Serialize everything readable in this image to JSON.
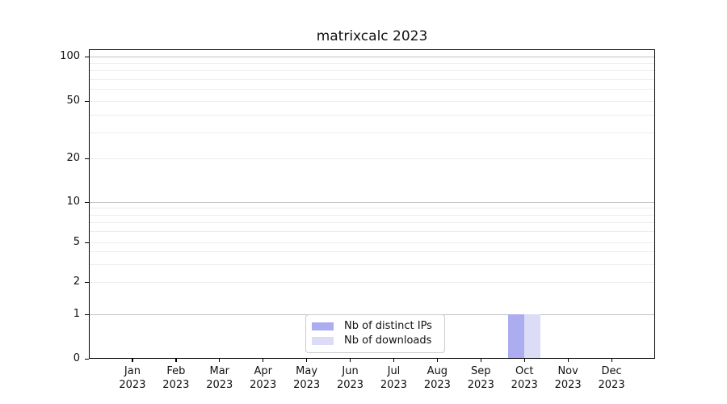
{
  "chart_data": {
    "type": "bar",
    "title": "matrixcalc 2023",
    "xlabel": "",
    "ylabel": "",
    "yscale": "symlog",
    "ylim": [
      0,
      100
    ],
    "yticks": [
      0,
      1,
      2,
      5,
      10,
      20,
      50,
      100
    ],
    "gridlines": {
      "major": [
        1,
        10,
        100
      ],
      "minor": [
        2,
        3,
        4,
        5,
        6,
        7,
        8,
        9,
        20,
        30,
        40,
        50,
        60,
        70,
        80,
        90
      ]
    },
    "grid": "horizontal-only",
    "categories": [
      {
        "month": "Jan",
        "year": "2023"
      },
      {
        "month": "Feb",
        "year": "2023"
      },
      {
        "month": "Mar",
        "year": "2023"
      },
      {
        "month": "Apr",
        "year": "2023"
      },
      {
        "month": "May",
        "year": "2023"
      },
      {
        "month": "Jun",
        "year": "2023"
      },
      {
        "month": "Jul",
        "year": "2023"
      },
      {
        "month": "Aug",
        "year": "2023"
      },
      {
        "month": "Sep",
        "year": "2023"
      },
      {
        "month": "Oct",
        "year": "2023"
      },
      {
        "month": "Nov",
        "year": "2023"
      },
      {
        "month": "Dec",
        "year": "2023"
      }
    ],
    "series": [
      {
        "name": "Nb of distinct IPs",
        "color": "#acacf1",
        "values": [
          0,
          0,
          0,
          0,
          0,
          0,
          0,
          0,
          0,
          1,
          0,
          0
        ]
      },
      {
        "name": "Nb of downloads",
        "color": "#dcdcf7",
        "values": [
          0,
          0,
          0,
          0,
          0,
          0,
          0,
          0,
          0,
          1,
          0,
          0
        ]
      }
    ],
    "legend": {
      "position": "lower-center"
    }
  }
}
